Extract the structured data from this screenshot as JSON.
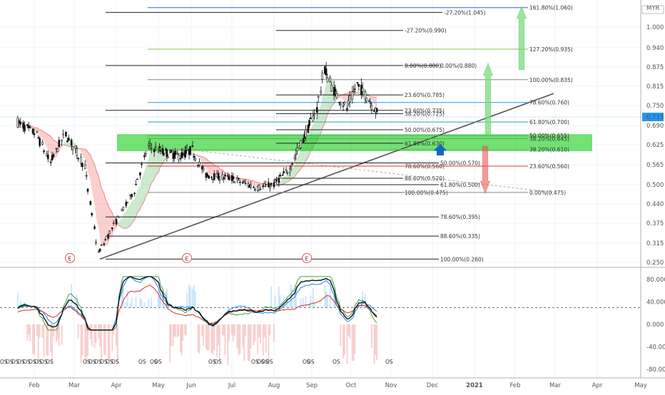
{
  "chart_data": [
    {
      "type": "candlestick",
      "currency": "MYR",
      "y_axis": {
        "ticks": [
          "1.000",
          "0.940",
          "0.875",
          "0.815",
          "0.750",
          "0.690",
          "0.625",
          "0.565",
          "0.500",
          "0.440",
          "0.375",
          "0.315",
          "0.250"
        ],
        "tick_values": [
          1.0,
          0.94,
          0.875,
          0.815,
          0.75,
          0.69,
          0.625,
          0.565,
          0.5,
          0.44,
          0.375,
          0.315,
          0.25
        ],
        "ylim": [
          0.245,
          1.07
        ]
      },
      "last_price": {
        "label": "0.715",
        "value": 0.715
      },
      "x_axis": {
        "labels": [
          "Feb",
          "Mar",
          "Apr",
          "May",
          "Jun",
          "Jul",
          "Aug",
          "Sep",
          "Oct",
          "Nov",
          "Dec",
          "2021",
          "Feb",
          "Mar",
          "Apr",
          "May"
        ]
      },
      "series_close": [
        {
          "date": "2020-01-20",
          "close": 0.7
        },
        {
          "date": "2020-02-03",
          "close": 0.66
        },
        {
          "date": "2020-02-13",
          "close": 0.57
        },
        {
          "date": "2020-02-24",
          "close": 0.66
        },
        {
          "date": "2020-03-09",
          "close": 0.56
        },
        {
          "date": "2020-03-19",
          "close": 0.28
        },
        {
          "date": "2020-04-01",
          "close": 0.38
        },
        {
          "date": "2020-04-14",
          "close": 0.48
        },
        {
          "date": "2020-04-24",
          "close": 0.62
        },
        {
          "date": "2020-05-08",
          "close": 0.6
        },
        {
          "date": "2020-05-22",
          "close": 0.59
        },
        {
          "date": "2020-06-02",
          "close": 0.61
        },
        {
          "date": "2020-06-12",
          "close": 0.53
        },
        {
          "date": "2020-07-01",
          "close": 0.52
        },
        {
          "date": "2020-07-20",
          "close": 0.49
        },
        {
          "date": "2020-08-01",
          "close": 0.5
        },
        {
          "date": "2020-08-14",
          "close": 0.55
        },
        {
          "date": "2020-08-25",
          "close": 0.64
        },
        {
          "date": "2020-09-05",
          "close": 0.74
        },
        {
          "date": "2020-09-11",
          "close": 0.87
        },
        {
          "date": "2020-09-18",
          "close": 0.8
        },
        {
          "date": "2020-09-28",
          "close": 0.74
        },
        {
          "date": "2020-10-06",
          "close": 0.82
        },
        {
          "date": "2020-10-15",
          "close": 0.77
        },
        {
          "date": "2020-10-23",
          "close": 0.72
        }
      ],
      "fib_levels": [
        {
          "label": "-27.20%(1.045)",
          "value": 1.045
        },
        {
          "label": "-27.20%(0.990)",
          "value": 0.99
        },
        {
          "label": "0.00%(0.880)",
          "value": 0.88
        },
        {
          "label": "0.00%(0.880)",
          "value": 0.88
        },
        {
          "label": "23.60%(0.785)",
          "value": 0.785
        },
        {
          "label": "38.20%(0.725)",
          "value": 0.725
        },
        {
          "label": "23.60%(0.735)",
          "value": 0.735
        },
        {
          "label": "50.00%(0.675)",
          "value": 0.675
        },
        {
          "label": "61.80%(0.630)",
          "value": 0.63
        },
        {
          "label": "50.00%(0.570)",
          "value": 0.57
        },
        {
          "label": "78.60%(0.560)",
          "value": 0.56
        },
        {
          "label": "88.60%(0.520)",
          "value": 0.52
        },
        {
          "label": "61.80%(0.500)",
          "value": 0.5
        },
        {
          "label": "100.00%(0.475)",
          "value": 0.475
        },
        {
          "label": "78.60%(0.395)",
          "value": 0.395
        },
        {
          "label": "88.60%(0.335)",
          "value": 0.335
        },
        {
          "label": "100.00%(0.260)",
          "value": 0.26
        }
      ],
      "fib_levels_colored": [
        {
          "label": "161.80%(1.060)",
          "value": 1.06,
          "color": "#3b5bd9"
        },
        {
          "label": "127.20%(0.935)",
          "value": 0.935,
          "color": "#8bc34a"
        },
        {
          "label": "100.00%(0.835)",
          "value": 0.835,
          "color": "#888888"
        },
        {
          "label": "78.60%(0.760)",
          "value": 0.76,
          "color": "#2196f3"
        },
        {
          "label": "61.80%(0.700)",
          "value": 0.7,
          "color": "#26a69a"
        },
        {
          "label": "50.00%(0.655)",
          "value": 0.655,
          "color": "#4caf50"
        },
        {
          "label": "38.20%(0.645)",
          "value": 0.645,
          "color": "#4caf50"
        },
        {
          "label": "38.20%(0.610)",
          "value": 0.61,
          "color": "#66bb6a"
        },
        {
          "label": "23.60%(0.560)",
          "value": 0.56,
          "color": "#e53935"
        },
        {
          "label": "0.00%(0.475)",
          "value": 0.475,
          "color": "#888888"
        }
      ],
      "event_markers": [
        "E",
        "E",
        "E"
      ]
    },
    {
      "type": "line",
      "y_axis": {
        "ticks": [
          "80.000",
          "40.000",
          "0.000",
          "-40.000",
          "-80.000"
        ],
        "tick_values": [
          80,
          40,
          0,
          -40,
          -80
        ],
        "ylim": [
          -95,
          95
        ]
      },
      "reference_line": 30,
      "signal_label": "OS"
    }
  ]
}
